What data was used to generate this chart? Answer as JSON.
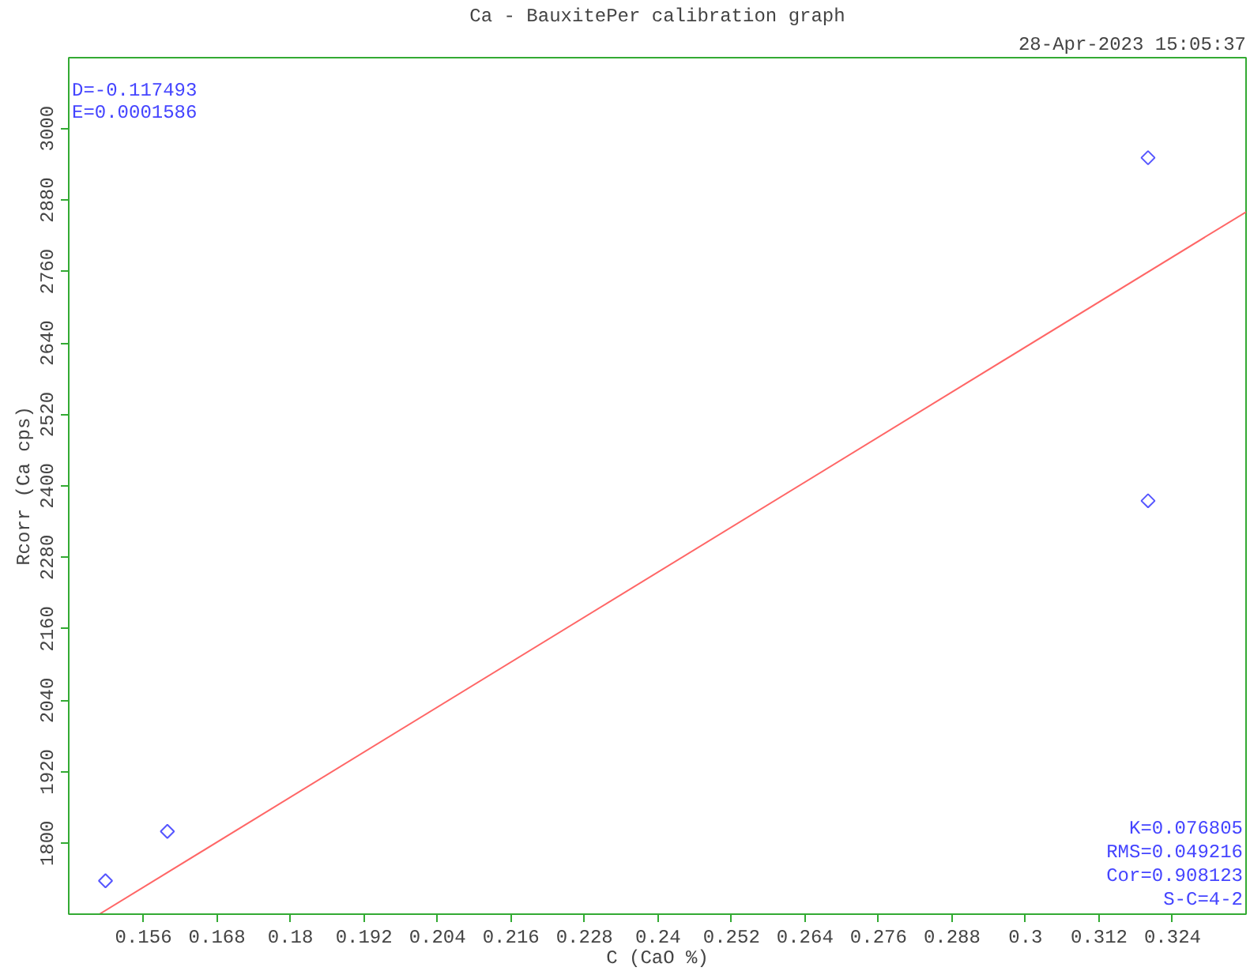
{
  "chart_data": {
    "type": "scatter",
    "title": "Ca - BauxitePer calibration graph",
    "xlabel": "C (CaO %)",
    "ylabel": "Rcorr (Ca cps)",
    "annotations": [
      "28-Apr-2023 15:05:37",
      "D=-0.117493",
      "E=0.0001586",
      "K=0.076805",
      "RMS=0.049216",
      "Cor=0.908123",
      "S-C=4-2"
    ],
    "xlim": [
      0.1438,
      0.336
    ],
    "ylim": [
      1681,
      3119
    ],
    "xticks": [
      0.156,
      0.168,
      0.18,
      0.192,
      0.204,
      0.216,
      0.228,
      0.24,
      0.252,
      0.264,
      0.276,
      0.288,
      0.3,
      0.312,
      0.324
    ],
    "yticks": [
      1800,
      1920,
      2040,
      2160,
      2280,
      2400,
      2520,
      2640,
      2760,
      2880,
      3000
    ],
    "grid": false,
    "series": [
      {
        "color": "#5555ff",
        "marker": "diamond",
        "x": [
          0.1498,
          0.1599,
          0.32,
          0.32
        ],
        "values": [
          1737,
          1820,
          2951,
          2375
        ]
      },
      {
        "type": "line",
        "marker": "none",
        "color": "#ff6666",
        "x": [
          0.1488,
          0.336
        ],
        "values": [
          1681,
          2860
        ],
        "line_style": "solid"
      }
    ]
  }
}
